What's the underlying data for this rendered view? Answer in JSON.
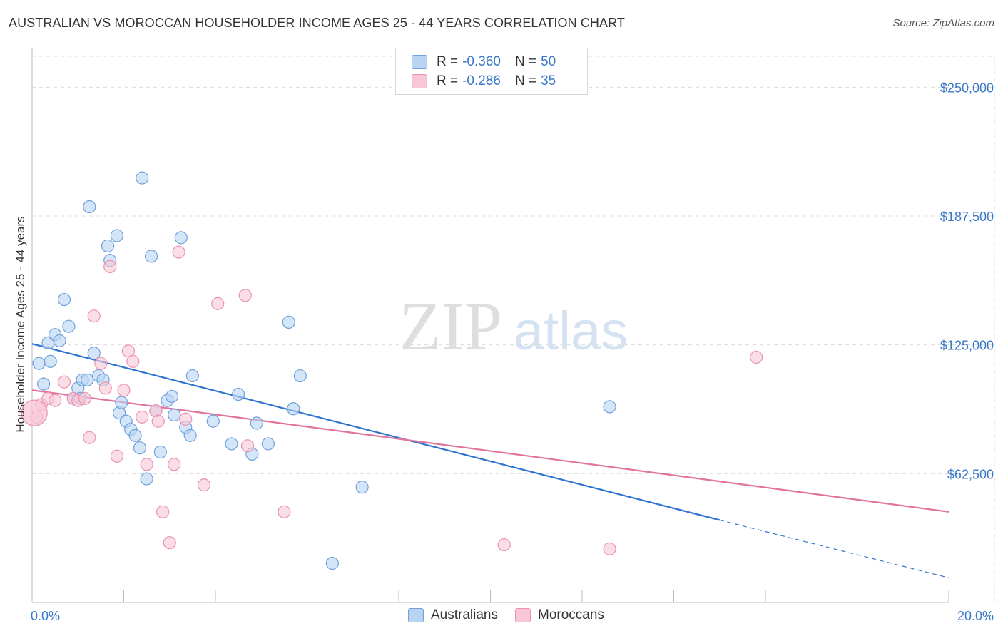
{
  "header": {
    "title": "AUSTRALIAN VS MOROCCAN HOUSEHOLDER INCOME AGES 25 - 44 YEARS CORRELATION CHART",
    "source": "Source: ZipAtlas.com"
  },
  "watermark": {
    "zip": "ZIP",
    "atlas": "atlas"
  },
  "legend": {
    "rows": [
      {
        "r_label": "R = ",
        "r_value": "-0.360",
        "n_label": "N = ",
        "n_value": "50"
      },
      {
        "r_label": "R = ",
        "r_value": "-0.286",
        "n_label": "N = ",
        "n_value": "35"
      }
    ]
  },
  "colors": {
    "blue_fill": "#b9d3f3",
    "blue_stroke": "#6fa1dc",
    "blue_line": "#2f74cf",
    "pink_fill": "#f8c6d5",
    "pink_stroke": "#e993b0",
    "pink_line": "#e2739c",
    "axis_text": "#3a78c9",
    "grid": "#dcdcdc"
  },
  "chart_data": {
    "type": "scatter",
    "title": "AUSTRALIAN VS MOROCCAN HOUSEHOLDER INCOME AGES 25 - 44 YEARS CORRELATION CHART",
    "xlabel": "",
    "ylabel": "Householder Income Ages 25 - 44 years",
    "xlim": [
      0,
      20
    ],
    "ylim": [
      0,
      265000
    ],
    "x_tick_labels": [
      "0.0%",
      "20.0%"
    ],
    "y_ticks": [
      62500,
      125000,
      187500,
      250000
    ],
    "y_tick_labels": [
      "$62,500",
      "$125,000",
      "$187,500",
      "$250,000"
    ],
    "grid": true,
    "legend_position": "bottom",
    "series": [
      {
        "name": "Australians",
        "color": "#6fa1dc",
        "points": [
          [
            0.15,
            116000
          ],
          [
            0.25,
            106000
          ],
          [
            0.35,
            126000
          ],
          [
            0.4,
            117000
          ],
          [
            0.5,
            130000
          ],
          [
            0.6,
            127000
          ],
          [
            0.7,
            147000
          ],
          [
            0.8,
            134000
          ],
          [
            0.9,
            99000
          ],
          [
            1.0,
            104000
          ],
          [
            1.05,
            99000
          ],
          [
            1.1,
            108000
          ],
          [
            1.2,
            108000
          ],
          [
            1.25,
            192000
          ],
          [
            1.35,
            121000
          ],
          [
            1.45,
            110000
          ],
          [
            1.55,
            108000
          ],
          [
            1.65,
            173000
          ],
          [
            1.7,
            166000
          ],
          [
            1.85,
            178000
          ],
          [
            1.9,
            92000
          ],
          [
            1.95,
            97000
          ],
          [
            2.05,
            88000
          ],
          [
            2.15,
            84000
          ],
          [
            2.25,
            81000
          ],
          [
            2.35,
            75000
          ],
          [
            2.4,
            206000
          ],
          [
            2.5,
            60000
          ],
          [
            2.6,
            168000
          ],
          [
            2.7,
            93000
          ],
          [
            2.8,
            73000
          ],
          [
            2.95,
            98000
          ],
          [
            3.05,
            100000
          ],
          [
            3.1,
            91000
          ],
          [
            3.25,
            177000
          ],
          [
            3.35,
            85000
          ],
          [
            3.45,
            81000
          ],
          [
            3.5,
            110000
          ],
          [
            3.95,
            88000
          ],
          [
            4.35,
            77000
          ],
          [
            4.5,
            101000
          ],
          [
            4.8,
            72000
          ],
          [
            4.9,
            87000
          ],
          [
            5.15,
            77000
          ],
          [
            5.6,
            136000
          ],
          [
            5.7,
            94000
          ],
          [
            5.85,
            110000
          ],
          [
            6.55,
            19000
          ],
          [
            7.2,
            56000
          ],
          [
            12.6,
            95000
          ]
        ]
      },
      {
        "name": "Moroccans",
        "color": "#e993b0",
        "points": [
          [
            0.1,
            90000
          ],
          [
            0.2,
            96000
          ],
          [
            0.35,
            99000
          ],
          [
            0.5,
            98000
          ],
          [
            0.7,
            107000
          ],
          [
            0.9,
            99000
          ],
          [
            1.0,
            98000
          ],
          [
            1.15,
            99000
          ],
          [
            1.25,
            80000
          ],
          [
            1.35,
            139000
          ],
          [
            1.5,
            116000
          ],
          [
            1.6,
            104000
          ],
          [
            1.7,
            163000
          ],
          [
            1.85,
            71000
          ],
          [
            2.0,
            103000
          ],
          [
            2.1,
            122000
          ],
          [
            2.2,
            117000
          ],
          [
            2.4,
            90000
          ],
          [
            2.5,
            67000
          ],
          [
            2.7,
            93000
          ],
          [
            2.75,
            88000
          ],
          [
            2.85,
            44000
          ],
          [
            3.0,
            29000
          ],
          [
            3.1,
            67000
          ],
          [
            3.2,
            170000
          ],
          [
            3.35,
            89000
          ],
          [
            3.75,
            57000
          ],
          [
            4.05,
            145000
          ],
          [
            4.65,
            149000
          ],
          [
            4.7,
            76000
          ],
          [
            5.5,
            44000
          ],
          [
            10.3,
            28000
          ],
          [
            12.6,
            26000
          ],
          [
            15.8,
            119000
          ],
          [
            0.05,
            92000
          ]
        ]
      }
    ],
    "trendlines": [
      {
        "series": "Australians",
        "x": [
          0,
          15
        ],
        "y": [
          125500,
          40000
        ],
        "dashed_extension_to_x": 20,
        "dashed_end_y": 12000
      },
      {
        "series": "Moroccans",
        "x": [
          0,
          20
        ],
        "y": [
          103000,
          44000
        ]
      }
    ]
  },
  "bottom_legend": {
    "items": [
      "Australians",
      "Moroccans"
    ]
  }
}
